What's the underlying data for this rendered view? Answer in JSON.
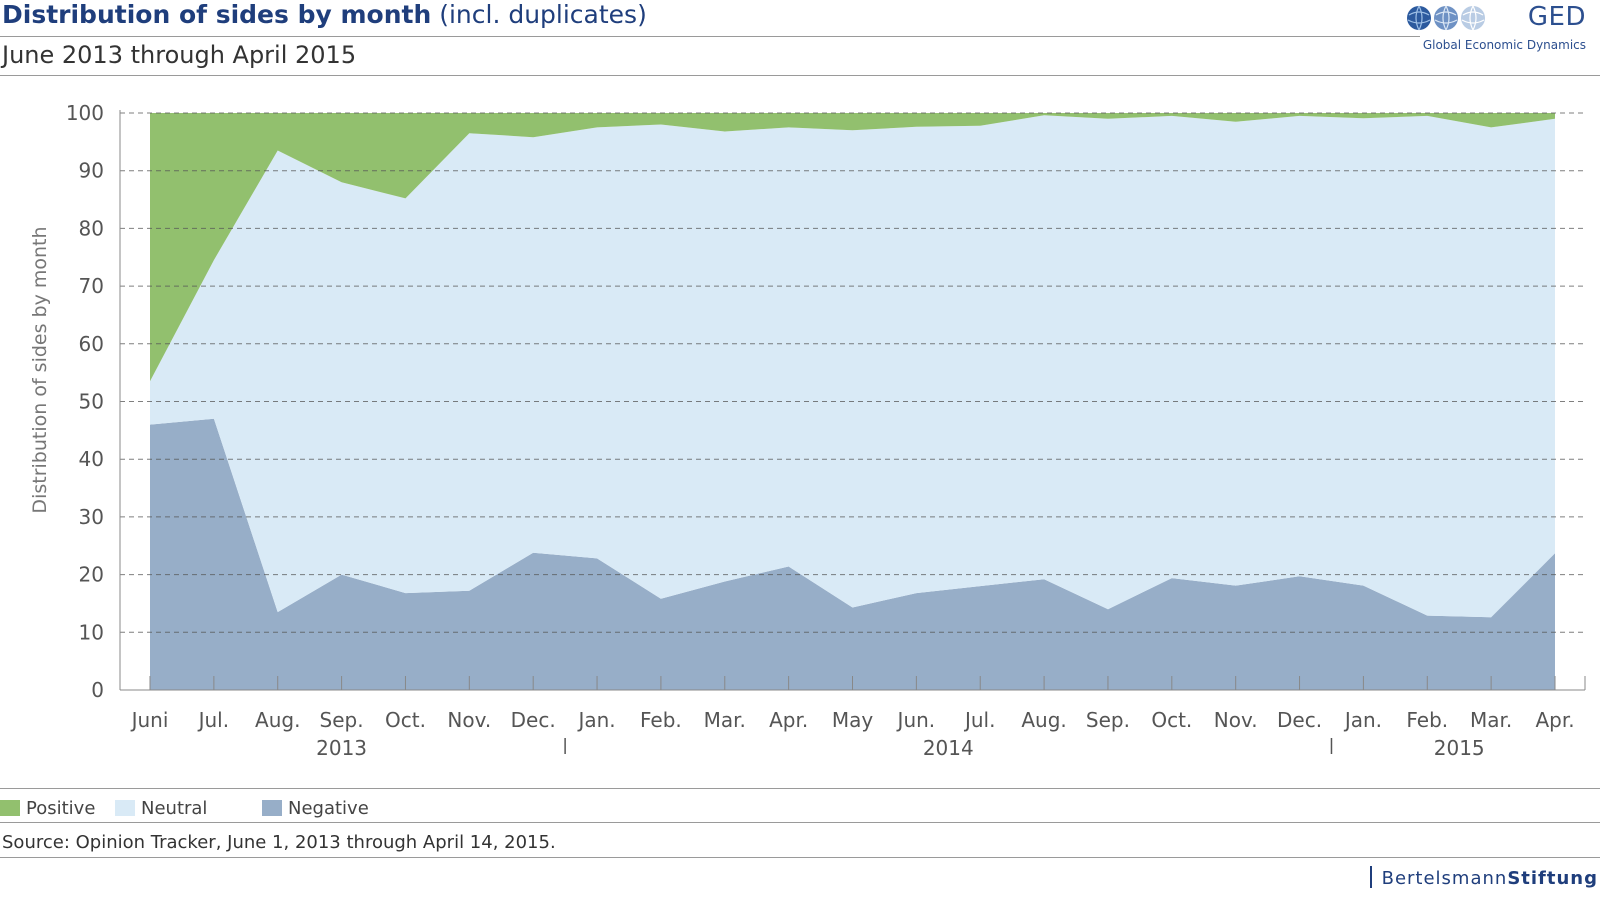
{
  "header": {
    "title_main": "Distribution of sides by month",
    "title_paren": "(incl. duplicates)",
    "subtitle": "June 2013 through April 2015"
  },
  "logo": {
    "name": "GED",
    "tagline": "Global Economic Dynamics",
    "icon": "globe-icons"
  },
  "legend": [
    {
      "label": "Positive",
      "color": "#92c06e"
    },
    {
      "label": "Neutral",
      "color": "#d9eaf6"
    },
    {
      "label": "Negative",
      "color": "#97aec8"
    }
  ],
  "source": "Source: Opinion Tracker, June 1, 2013 through April 14, 2015.",
  "brand": {
    "part1": "Bertelsmann",
    "part2": "Stiftung"
  },
  "chart_data": {
    "type": "area",
    "stacked": true,
    "ylabel": "Distribution of sides by month",
    "ylim": [
      0,
      100
    ],
    "yticks": [
      0,
      10,
      20,
      30,
      40,
      50,
      60,
      70,
      80,
      90,
      100
    ],
    "grid": true,
    "categories": [
      "Juni",
      "Jul.",
      "Aug.",
      "Sep.",
      "Oct.",
      "Nov.",
      "Dec.",
      "Jan.",
      "Feb.",
      "Mar.",
      "Apr.",
      "May",
      "Jun.",
      "Jul.",
      "Aug.",
      "Sep.",
      "Oct.",
      "Nov.",
      "Dec.",
      "Jan.",
      "Feb.",
      "Mar.",
      "Apr."
    ],
    "years": [
      {
        "label": "2013",
        "from": 0,
        "to": 6
      },
      {
        "label": "2014",
        "from": 7,
        "to": 18
      },
      {
        "label": "2015",
        "from": 19,
        "to": 22
      }
    ],
    "series": [
      {
        "name": "Negative",
        "color": "#97aec8",
        "values": [
          46,
          47,
          13.5,
          20,
          16.8,
          17.2,
          23.8,
          22.8,
          15.8,
          18.8,
          21.4,
          14.3,
          16.8,
          18,
          19.2,
          14,
          19.4,
          18.1,
          19.7,
          18.1,
          12.9,
          12.6,
          23.7
        ]
      },
      {
        "name": "Neutral",
        "color": "#d9eaf6",
        "values": [
          7.5,
          27.5,
          80,
          68,
          68.4,
          79.3,
          72,
          74.7,
          82.2,
          78,
          76.1,
          82.7,
          80.8,
          79.8,
          80.4,
          85,
          80.1,
          80.4,
          79.8,
          81,
          86.6,
          84.9,
          75.3
        ]
      },
      {
        "name": "Positive",
        "color": "#92c06e",
        "values": [
          46.5,
          25.5,
          6.5,
          12,
          14.8,
          3.5,
          4.2,
          2.5,
          2,
          3.2,
          2.5,
          3,
          2.4,
          2.2,
          0.4,
          1,
          0.5,
          1.5,
          0.5,
          0.9,
          0.5,
          2.5,
          1
        ]
      }
    ]
  }
}
